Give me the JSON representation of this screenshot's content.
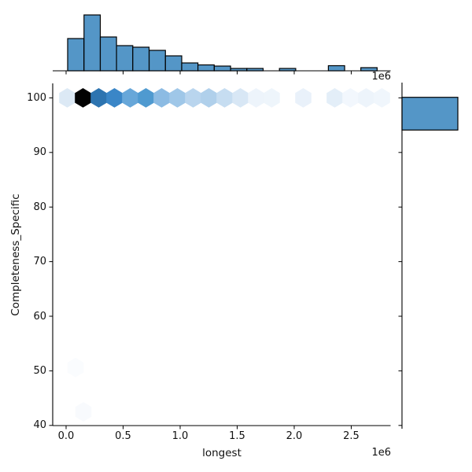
{
  "figure": {
    "background_color": "#ffffff",
    "accent_color": "#5496c7",
    "edge_color": "#000000"
  },
  "chart_data": {
    "type": "hexbin",
    "subtype": "joint_plot_with_marginal_histograms",
    "title": "",
    "xlabel": "longest",
    "ylabel": "Completeness_Specific",
    "x_offset_label": "1e6",
    "x_unit": 1000000,
    "xlim_e6": [
      -0.117,
      2.84
    ],
    "ylim": [
      40,
      102.8
    ],
    "grid": false,
    "legend": null,
    "x_ticks_e6": [
      0.0,
      0.5,
      1.0,
      1.5,
      2.0,
      2.5
    ],
    "x_tick_labels": [
      "0.0",
      "0.5",
      "1.0",
      "1.5",
      "2.0",
      "2.5"
    ],
    "y_ticks": [
      100,
      90,
      80,
      70,
      60,
      50,
      40
    ],
    "y_tick_labels": [
      "100",
      "90",
      "80",
      "70",
      "60",
      "50",
      "40"
    ],
    "hexagons": [
      {
        "x_e6": 0.01,
        "y": 100,
        "color": "#dce9f5"
      },
      {
        "x_e6": 0.148,
        "y": 100,
        "color": "#020202"
      },
      {
        "x_e6": 0.286,
        "y": 100,
        "color": "#2d74b0"
      },
      {
        "x_e6": 0.424,
        "y": 100,
        "color": "#3a86c7"
      },
      {
        "x_e6": 0.562,
        "y": 100,
        "color": "#67a7d9"
      },
      {
        "x_e6": 0.7,
        "y": 100,
        "color": "#4f9ad0"
      },
      {
        "x_e6": 0.838,
        "y": 100,
        "color": "#8cbbe3"
      },
      {
        "x_e6": 0.976,
        "y": 100,
        "color": "#9fc7e8"
      },
      {
        "x_e6": 1.114,
        "y": 100,
        "color": "#b9d5ee"
      },
      {
        "x_e6": 1.252,
        "y": 100,
        "color": "#b0d0eb"
      },
      {
        "x_e6": 1.39,
        "y": 100,
        "color": "#c6ddf1"
      },
      {
        "x_e6": 1.528,
        "y": 100,
        "color": "#d8e7f5"
      },
      {
        "x_e6": 1.666,
        "y": 100,
        "color": "#edf4fb"
      },
      {
        "x_e6": 1.803,
        "y": 100,
        "color": "#eef5fb"
      },
      {
        "x_e6": 2.079,
        "y": 100,
        "color": "#e9f1fa"
      },
      {
        "x_e6": 2.355,
        "y": 100,
        "color": "#e3eef8"
      },
      {
        "x_e6": 2.493,
        "y": 100,
        "color": "#f2f7fd"
      },
      {
        "x_e6": 2.631,
        "y": 100,
        "color": "#edf4fb"
      },
      {
        "x_e6": 2.769,
        "y": 100,
        "color": "#f0f6fc"
      },
      {
        "x_e6": 0.083,
        "y": 50.6,
        "color": "#fafcfe"
      },
      {
        "x_e6": 0.152,
        "y": 42.5,
        "color": "#f8fafd"
      }
    ],
    "marginal_x_histogram": {
      "type": "bar",
      "bar_color": "#5496c7",
      "edge_color": "#000000",
      "bin_edges_e6": [
        0.014,
        0.157,
        0.3,
        0.442,
        0.585,
        0.728,
        0.871,
        1.014,
        1.156,
        1.299,
        1.442,
        1.585,
        1.728,
        1.87,
        2.013,
        2.156,
        2.299,
        2.442,
        2.584,
        2.727
      ],
      "heights_rel": [
        0.577,
        1.0,
        0.606,
        0.451,
        0.423,
        0.366,
        0.268,
        0.141,
        0.106,
        0.085,
        0.042,
        0.042,
        0,
        0.042,
        0,
        0,
        0.092,
        0,
        0.056
      ]
    },
    "marginal_y_histogram": {
      "type": "bar",
      "bar_color": "#5496c7",
      "edge_color": "#000000",
      "bars": [
        {
          "y_from": 94.1,
          "y_to": 100.1,
          "length_rel": 1.0
        }
      ]
    }
  }
}
